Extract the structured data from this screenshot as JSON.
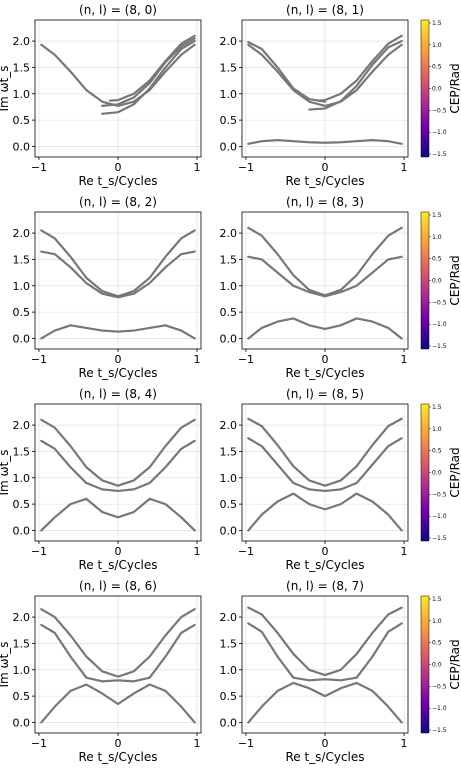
{
  "chart_data": [
    {
      "type": "line",
      "title": "(n, l) = (8, 0)",
      "xlabel": "Re t_s/Cycles",
      "ylabel": "Im ωt_s",
      "xlim": [
        -1.05,
        1.05
      ],
      "ylim": [
        -0.2,
        2.4
      ],
      "xticks": [
        -1,
        0,
        1
      ],
      "yticks": [
        0.0,
        0.5,
        1.0,
        1.5,
        2.0
      ],
      "grid": true,
      "series": [
        {
          "x": [
            -0.97,
            -0.8,
            -0.6,
            -0.4,
            -0.2,
            0.0,
            0.2,
            0.4,
            0.6,
            0.8,
            0.97
          ],
          "y": [
            1.93,
            1.74,
            1.42,
            1.07,
            0.85,
            0.77,
            0.85,
            1.07,
            1.42,
            1.74,
            1.93
          ]
        },
        {
          "x": [
            -0.2,
            0.0,
            0.2,
            0.4,
            0.6,
            0.8,
            0.97
          ],
          "y": [
            0.62,
            0.65,
            0.8,
            1.1,
            1.5,
            1.85,
            2.0
          ]
        },
        {
          "x": [
            -0.2,
            0.0,
            0.2,
            0.4,
            0.6,
            0.8,
            0.97
          ],
          "y": [
            0.77,
            0.8,
            0.93,
            1.2,
            1.6,
            1.9,
            2.05
          ]
        },
        {
          "x": [
            -0.1,
            0.0,
            0.2,
            0.4,
            0.6,
            0.8,
            0.97
          ],
          "y": [
            0.87,
            0.88,
            1.0,
            1.25,
            1.62,
            1.95,
            2.1
          ]
        }
      ]
    },
    {
      "type": "line",
      "title": "(n, l) = (8, 1)",
      "xlabel": "Re t_s/Cycles",
      "ylabel": "",
      "xlim": [
        -1.05,
        1.05
      ],
      "ylim": [
        -0.2,
        2.4
      ],
      "xticks": [
        -1,
        0,
        1
      ],
      "yticks": [
        0.0,
        0.5,
        1.0,
        1.5,
        2.0
      ],
      "colorbar": {
        "label": "CEP/Rad",
        "ticks": [
          1.5,
          1.0,
          0.5,
          0.0,
          -0.5,
          -1.0,
          -1.5
        ]
      },
      "series": [
        {
          "x": [
            -0.97,
            -0.8,
            -0.6,
            -0.4,
            -0.2,
            0.0,
            0.2,
            0.4,
            0.6,
            0.8,
            0.97
          ],
          "y": [
            1.93,
            1.74,
            1.42,
            1.07,
            0.85,
            0.77,
            0.85,
            1.07,
            1.42,
            1.74,
            1.93
          ]
        },
        {
          "x": [
            -0.97,
            -0.8,
            -0.6,
            -0.4,
            -0.2,
            0.0
          ],
          "y": [
            1.98,
            1.85,
            1.5,
            1.1,
            0.9,
            0.85
          ]
        },
        {
          "x": [
            -0.2,
            0.0,
            0.2,
            0.4,
            0.6,
            0.8,
            0.97
          ],
          "y": [
            0.7,
            0.72,
            0.86,
            1.15,
            1.55,
            1.88,
            2.0
          ]
        },
        {
          "x": [
            -0.1,
            0.0,
            0.2,
            0.4,
            0.6,
            0.8,
            0.97
          ],
          "y": [
            0.87,
            0.88,
            1.0,
            1.25,
            1.62,
            1.95,
            2.1
          ]
        },
        {
          "x": [
            -0.97,
            -0.8,
            -0.6,
            -0.4,
            -0.2,
            0.0,
            0.2,
            0.4,
            0.6,
            0.8,
            0.97
          ],
          "y": [
            0.05,
            0.1,
            0.12,
            0.1,
            0.08,
            0.07,
            0.08,
            0.1,
            0.12,
            0.1,
            0.05
          ]
        }
      ]
    },
    {
      "type": "line",
      "title": "(n, l) = (8, 2)",
      "xlabel": "Re t_s/Cycles",
      "ylabel": "",
      "xlim": [
        -1.05,
        1.05
      ],
      "ylim": [
        -0.2,
        2.4
      ],
      "xticks": [
        -1,
        0,
        1
      ],
      "yticks": [
        0.0,
        0.5,
        1.0,
        1.5,
        2.0
      ],
      "series": [
        {
          "x": [
            -0.97,
            -0.8,
            -0.6,
            -0.4,
            -0.2,
            0.0,
            0.2,
            0.4,
            0.6,
            0.8,
            0.97
          ],
          "y": [
            2.05,
            1.9,
            1.55,
            1.15,
            0.9,
            0.8,
            0.9,
            1.15,
            1.55,
            1.9,
            2.05
          ]
        },
        {
          "x": [
            -0.97,
            -0.8,
            -0.6,
            -0.4,
            -0.2,
            0.0,
            0.2,
            0.4,
            0.6,
            0.8,
            0.97
          ],
          "y": [
            1.65,
            1.6,
            1.35,
            1.05,
            0.85,
            0.78,
            0.85,
            1.05,
            1.35,
            1.6,
            1.65
          ]
        },
        {
          "x": [
            -0.97,
            -0.8,
            -0.6,
            -0.4,
            -0.2,
            0.0,
            0.2,
            0.4,
            0.6,
            0.8,
            0.97
          ],
          "y": [
            0.0,
            0.15,
            0.25,
            0.2,
            0.15,
            0.13,
            0.15,
            0.2,
            0.25,
            0.15,
            0.0
          ]
        }
      ]
    },
    {
      "type": "line",
      "title": "(n, l) = (8, 3)",
      "xlabel": "Re t_s/Cycles",
      "ylabel": "",
      "xlim": [
        -1.05,
        1.05
      ],
      "ylim": [
        -0.2,
        2.4
      ],
      "xticks": [
        -1,
        0,
        1
      ],
      "yticks": [
        0.0,
        0.5,
        1.0,
        1.5,
        2.0
      ],
      "colorbar": {
        "label": "CEP/Rad",
        "ticks": [
          1.5,
          1.0,
          0.5,
          0.0,
          -0.5,
          -1.0,
          -1.5
        ]
      },
      "series": [
        {
          "x": [
            -0.97,
            -0.8,
            -0.6,
            -0.4,
            -0.2,
            0.0,
            0.2,
            0.4,
            0.6,
            0.8,
            0.97
          ],
          "y": [
            2.1,
            1.95,
            1.6,
            1.2,
            0.92,
            0.82,
            0.92,
            1.2,
            1.6,
            1.95,
            2.1
          ]
        },
        {
          "x": [
            -0.97,
            -0.8,
            -0.6,
            -0.4,
            -0.2,
            0.0,
            0.2,
            0.4,
            0.6,
            0.8,
            0.97
          ],
          "y": [
            1.55,
            1.5,
            1.25,
            1.0,
            0.88,
            0.8,
            0.88,
            1.0,
            1.25,
            1.5,
            1.55
          ]
        },
        {
          "x": [
            -0.97,
            -0.8,
            -0.6,
            -0.4,
            -0.2,
            0.0,
            0.2,
            0.4,
            0.6,
            0.8,
            0.97
          ],
          "y": [
            0.0,
            0.2,
            0.32,
            0.38,
            0.25,
            0.18,
            0.25,
            0.38,
            0.32,
            0.2,
            0.0
          ]
        }
      ]
    },
    {
      "type": "line",
      "title": "(n, l) = (8, 4)",
      "xlabel": "Re t_s/Cycles",
      "ylabel": "Im ωt_s",
      "xlim": [
        -1.05,
        1.05
      ],
      "ylim": [
        -0.2,
        2.4
      ],
      "xticks": [
        -1,
        0,
        1
      ],
      "yticks": [
        0.0,
        0.5,
        1.0,
        1.5,
        2.0
      ],
      "series": [
        {
          "x": [
            -0.97,
            -0.8,
            -0.6,
            -0.4,
            -0.2,
            0.0,
            0.2,
            0.4,
            0.6,
            0.8,
            0.97
          ],
          "y": [
            2.1,
            1.95,
            1.6,
            1.2,
            0.95,
            0.85,
            0.95,
            1.2,
            1.6,
            1.95,
            2.1
          ]
        },
        {
          "x": [
            -0.97,
            -0.8,
            -0.6,
            -0.4,
            -0.2,
            0.0,
            0.2,
            0.4,
            0.6,
            0.8,
            0.97
          ],
          "y": [
            1.7,
            1.55,
            1.2,
            0.9,
            0.78,
            0.75,
            0.78,
            0.9,
            1.2,
            1.55,
            1.7
          ]
        },
        {
          "x": [
            -0.97,
            -0.8,
            -0.6,
            -0.4,
            -0.2,
            0.0,
            0.2,
            0.4,
            0.6,
            0.8,
            0.97
          ],
          "y": [
            0.0,
            0.25,
            0.5,
            0.6,
            0.35,
            0.25,
            0.35,
            0.6,
            0.5,
            0.25,
            0.0
          ]
        }
      ]
    },
    {
      "type": "line",
      "title": "(n, l) = (8, 5)",
      "xlabel": "Re t_s/Cycles",
      "ylabel": "",
      "xlim": [
        -1.05,
        1.05
      ],
      "ylim": [
        -0.2,
        2.4
      ],
      "xticks": [
        -1,
        0,
        1
      ],
      "yticks": [
        0.0,
        0.5,
        1.0,
        1.5,
        2.0
      ],
      "colorbar": {
        "label": "CEP/Rad",
        "ticks": [
          1.5,
          1.0,
          0.5,
          0.0,
          -0.5,
          -1.0,
          -1.5
        ]
      },
      "series": [
        {
          "x": [
            -0.97,
            -0.8,
            -0.6,
            -0.4,
            -0.2,
            0.0,
            0.2,
            0.4,
            0.6,
            0.8,
            0.97
          ],
          "y": [
            2.12,
            1.98,
            1.62,
            1.22,
            0.95,
            0.85,
            0.95,
            1.22,
            1.62,
            1.98,
            2.12
          ]
        },
        {
          "x": [
            -0.97,
            -0.8,
            -0.6,
            -0.4,
            -0.2,
            0.0,
            0.2,
            0.4,
            0.6,
            0.8,
            0.97
          ],
          "y": [
            1.75,
            1.6,
            1.25,
            0.9,
            0.78,
            0.75,
            0.78,
            0.9,
            1.25,
            1.6,
            1.75
          ]
        },
        {
          "x": [
            -0.97,
            -0.8,
            -0.6,
            -0.4,
            -0.2,
            0.0,
            0.2,
            0.4,
            0.6,
            0.8,
            0.97
          ],
          "y": [
            0.0,
            0.3,
            0.55,
            0.7,
            0.5,
            0.4,
            0.5,
            0.7,
            0.55,
            0.3,
            0.0
          ]
        }
      ]
    },
    {
      "type": "line",
      "title": "(n, l) = (8, 6)",
      "xlabel": "Re t_s/Cycles",
      "ylabel": "Im ωt_s",
      "xlim": [
        -1.05,
        1.05
      ],
      "ylim": [
        -0.2,
        2.4
      ],
      "xticks": [
        -1,
        0,
        1
      ],
      "yticks": [
        0.0,
        0.5,
        1.0,
        1.5,
        2.0
      ],
      "series": [
        {
          "x": [
            -0.97,
            -0.8,
            -0.6,
            -0.4,
            -0.2,
            0.0,
            0.2,
            0.4,
            0.6,
            0.8,
            0.97
          ],
          "y": [
            2.15,
            2.0,
            1.65,
            1.25,
            0.97,
            0.87,
            0.97,
            1.25,
            1.65,
            2.0,
            2.15
          ]
        },
        {
          "x": [
            -0.97,
            -0.8,
            -0.6,
            -0.4,
            -0.2,
            0.0,
            0.2,
            0.4,
            0.6,
            0.8,
            0.97
          ],
          "y": [
            1.85,
            1.7,
            1.25,
            0.85,
            0.78,
            0.8,
            0.78,
            0.85,
            1.25,
            1.7,
            1.85
          ]
        },
        {
          "x": [
            -0.97,
            -0.8,
            -0.6,
            -0.4,
            -0.2,
            0.0,
            0.2,
            0.4,
            0.6,
            0.8,
            0.97
          ],
          "y": [
            0.0,
            0.3,
            0.6,
            0.72,
            0.55,
            0.35,
            0.55,
            0.72,
            0.6,
            0.3,
            0.0
          ]
        }
      ]
    },
    {
      "type": "line",
      "title": "(n, l) = (8, 7)",
      "xlabel": "Re t_s/Cycles",
      "ylabel": "",
      "xlim": [
        -1.05,
        1.05
      ],
      "ylim": [
        -0.2,
        2.4
      ],
      "xticks": [
        -1,
        0,
        1
      ],
      "yticks": [
        0.0,
        0.5,
        1.0,
        1.5,
        2.0
      ],
      "colorbar": {
        "label": "CEP/Rad",
        "ticks": [
          1.5,
          1.0,
          0.5,
          0.0,
          -0.5,
          -1.0,
          -1.5
        ]
      },
      "series": [
        {
          "x": [
            -0.97,
            -0.8,
            -0.6,
            -0.4,
            -0.2,
            0.0,
            0.2,
            0.4,
            0.6,
            0.8,
            0.97
          ],
          "y": [
            2.18,
            2.05,
            1.7,
            1.3,
            1.0,
            0.9,
            1.0,
            1.3,
            1.7,
            2.05,
            2.18
          ]
        },
        {
          "x": [
            -0.97,
            -0.8,
            -0.6,
            -0.4,
            -0.2,
            0.0,
            0.2,
            0.4,
            0.6,
            0.8,
            0.97
          ],
          "y": [
            1.88,
            1.72,
            1.25,
            0.85,
            0.8,
            0.82,
            0.8,
            0.85,
            1.25,
            1.72,
            1.88
          ]
        },
        {
          "x": [
            -0.97,
            -0.8,
            -0.6,
            -0.4,
            -0.2,
            0.0,
            0.2,
            0.4,
            0.6,
            0.8,
            0.97
          ],
          "y": [
            0.0,
            0.3,
            0.6,
            0.75,
            0.65,
            0.5,
            0.65,
            0.75,
            0.6,
            0.3,
            0.0
          ]
        }
      ]
    }
  ]
}
